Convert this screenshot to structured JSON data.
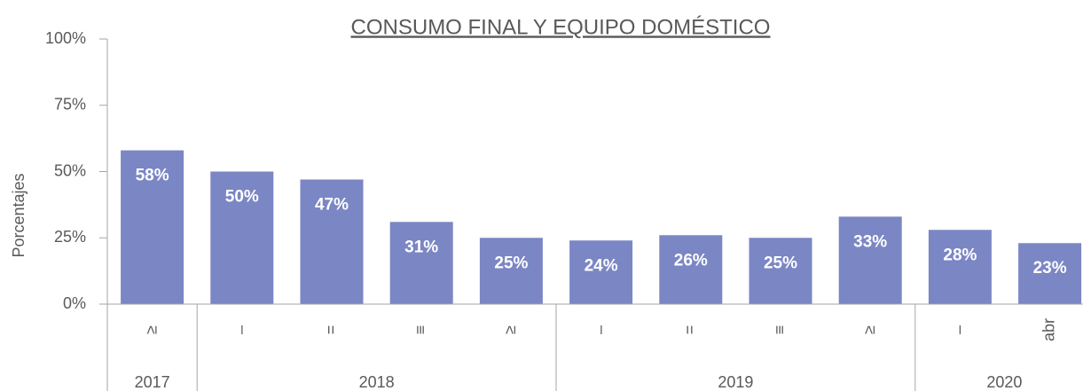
{
  "chart_data": {
    "type": "bar",
    "title": "CONSUMO FINAL Y EQUIPO DOMÉSTICO",
    "y_label": "Porcentajes",
    "categories": [
      "≥",
      "–",
      "=",
      "≡",
      "≥",
      "–",
      "=",
      "≡",
      "≥",
      "–",
      "abr"
    ],
    "groups": [
      {
        "label": "2017",
        "span": 1
      },
      {
        "label": "2018",
        "span": 4
      },
      {
        "label": "2019",
        "span": 4
      },
      {
        "label": "2020",
        "span": 2
      }
    ],
    "values": [
      58,
      50,
      47,
      31,
      25,
      24,
      26,
      25,
      33,
      28,
      23
    ],
    "value_labels": [
      "58%",
      "50%",
      "47%",
      "31%",
      "25%",
      "24%",
      "26%",
      "25%",
      "33%",
      "28%",
      "23%"
    ],
    "color": "#7b86c4",
    "ylim": [
      0,
      100
    ],
    "yticks": [
      {
        "value": 0,
        "label": "0%"
      },
      {
        "value": 25,
        "label": "25%"
      },
      {
        "value": 50,
        "label": "50%"
      },
      {
        "value": 75,
        "label": "75%"
      },
      {
        "value": 100,
        "label": "100%"
      }
    ],
    "grid": false
  }
}
